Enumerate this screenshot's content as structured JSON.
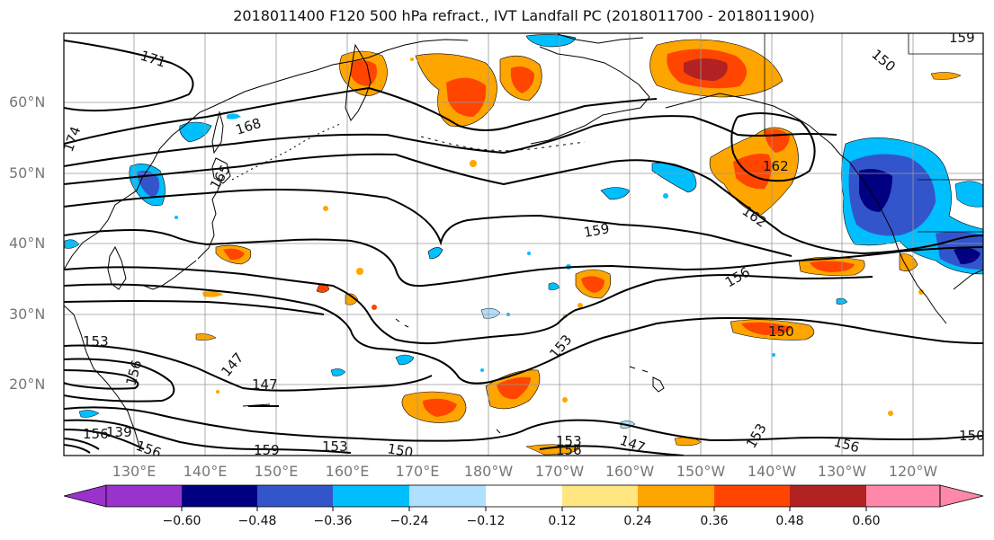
{
  "title": "2018011400 F120 500 hPa refract., IVT Landfall PC (2018011700 - 2018011900)",
  "map": {
    "lat_labels": [
      "60°N",
      "50°N",
      "40°N",
      "30°N",
      "20°N"
    ],
    "lon_labels": [
      "130°E",
      "140°E",
      "150°E",
      "160°E",
      "170°E",
      "180°W",
      "170°W",
      "160°W",
      "150°W",
      "140°W",
      "130°W",
      "120°W"
    ],
    "contour_labels": [
      "171",
      "168",
      "174",
      "165",
      "162",
      "162",
      "159",
      "156",
      "156",
      "153",
      "153",
      "147",
      "147",
      "156",
      "139",
      "156",
      "159",
      "153",
      "150",
      "153",
      "156",
      "147",
      "153",
      "156",
      "150",
      "150",
      "159",
      "150"
    ],
    "colors": {
      "strong_neg": "#9933cc",
      "neg_060": "#000080",
      "neg_048": "#3355cc",
      "neg_036": "#00bfff",
      "neg_024": "#b0e0ff",
      "neutral": "#ffffff",
      "pos_012": "#ffe680",
      "pos_024": "#ffa500",
      "pos_036": "#ff4500",
      "pos_048": "#b22222",
      "strong_pos": "#ff88aa"
    }
  },
  "colorbar": {
    "tick_labels": [
      "−0.60",
      "−0.48",
      "−0.36",
      "−0.24",
      "−0.12",
      "0.12",
      "0.24",
      "0.36",
      "0.48",
      "0.60"
    ],
    "colors": [
      "#9933cc",
      "#000080",
      "#3355cc",
      "#00bfff",
      "#b0e0ff",
      "#ffffff",
      "#ffe680",
      "#ffa500",
      "#ff4500",
      "#b22222",
      "#ff88aa"
    ]
  }
}
